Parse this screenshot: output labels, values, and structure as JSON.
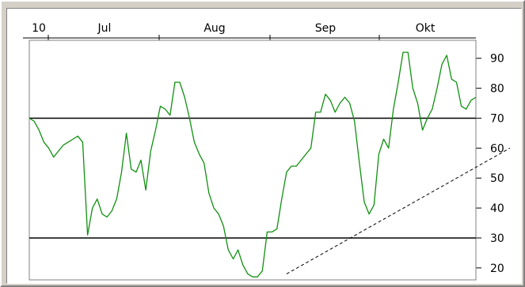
{
  "chart_data": {
    "type": "line",
    "title": "",
    "xlabel": "",
    "ylabel": "",
    "x_tick_labels": [
      "10",
      "Jul",
      "Aug",
      "Sep",
      "Okt"
    ],
    "y_ticks": [
      20,
      30,
      40,
      50,
      60,
      70,
      80,
      90
    ],
    "ylim": [
      16,
      96
    ],
    "y_axis_position": "right",
    "grid": false,
    "legend": "none",
    "colors": {
      "series": "#109010",
      "reference": "#000000",
      "trend": "#000000",
      "background": "#ffffff"
    },
    "reference_lines": [
      70,
      30
    ],
    "trend_line": {
      "from": [
        53,
        18
      ],
      "to": [
        99,
        60
      ]
    },
    "series": [
      {
        "values": [
          70,
          69,
          66,
          62,
          60,
          57,
          59,
          61,
          62,
          63,
          64,
          62,
          31,
          40,
          43,
          38,
          37,
          39,
          43,
          52,
          65,
          53,
          52,
          56,
          46,
          59,
          66,
          74,
          73,
          71,
          82,
          82,
          77,
          70,
          62,
          58,
          55,
          45,
          40,
          38,
          34,
          26,
          23,
          26,
          21,
          18,
          17,
          17,
          19,
          32,
          32,
          33,
          43,
          52,
          54,
          54,
          56,
          58,
          60,
          72,
          72,
          78,
          76,
          72,
          75,
          77,
          75,
          69,
          55,
          42,
          38,
          41,
          58,
          63,
          60,
          73,
          82,
          92,
          92,
          80,
          75,
          66,
          70,
          73,
          80,
          88,
          91,
          83,
          82,
          74,
          73,
          76,
          77
        ]
      }
    ]
  }
}
